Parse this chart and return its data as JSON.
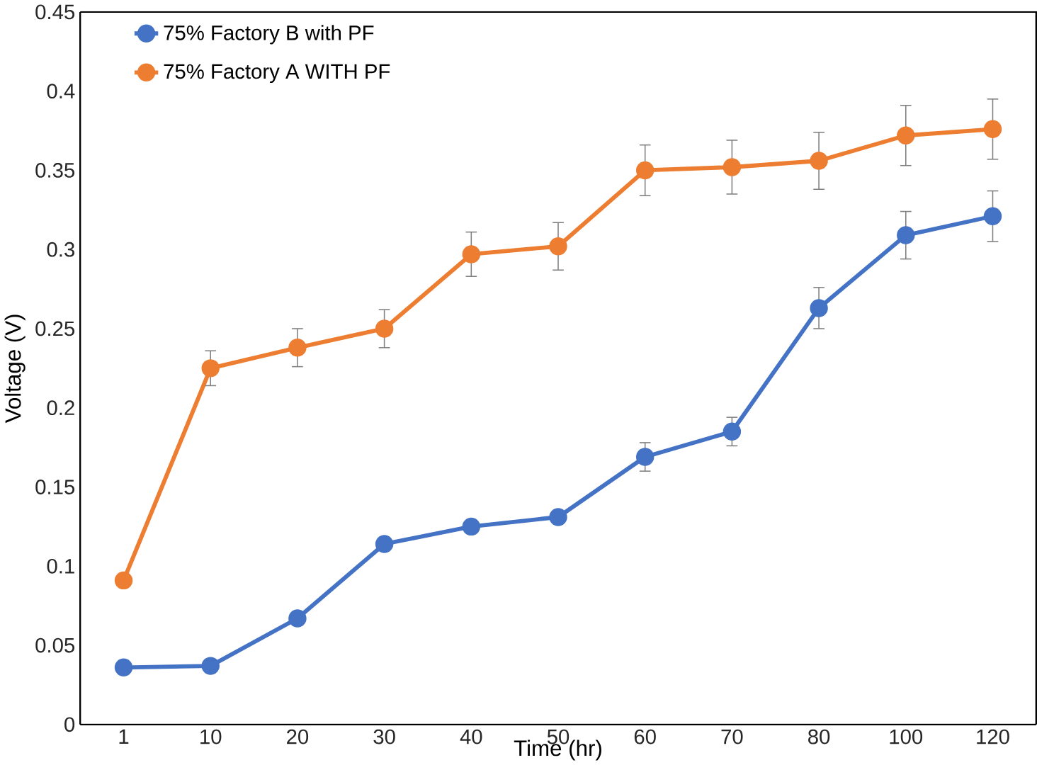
{
  "chart_data": {
    "type": "line",
    "xlabel": "Time (hr)",
    "ylabel": "Voltage (V)",
    "categories": [
      "1",
      "10",
      "20",
      "30",
      "40",
      "50",
      "60",
      "70",
      "80",
      "100",
      "120"
    ],
    "series": [
      {
        "name": "75% Factory B with PF",
        "color": "#4472c4",
        "values": [
          0.036,
          0.037,
          0.067,
          0.114,
          0.125,
          0.131,
          0.169,
          0.185,
          0.263,
          0.309,
          0.321
        ],
        "errors": [
          null,
          null,
          null,
          null,
          null,
          null,
          0.009,
          0.009,
          0.013,
          0.015,
          0.016
        ]
      },
      {
        "name": "75% Factory A WITH PF",
        "color": "#ed7d31",
        "values": [
          0.091,
          0.225,
          0.238,
          0.25,
          0.297,
          0.302,
          0.35,
          0.352,
          0.356,
          0.372,
          0.376
        ],
        "errors": [
          null,
          0.011,
          0.012,
          0.012,
          0.014,
          0.015,
          0.016,
          0.017,
          0.018,
          0.019,
          0.019
        ]
      }
    ],
    "ylim": [
      0,
      0.45
    ],
    "yticks": [
      0,
      0.05,
      0.1,
      0.15,
      0.2,
      0.25,
      0.3,
      0.35,
      0.4,
      0.45
    ],
    "grid": false,
    "legend": "top left",
    "marker": "circle",
    "line_style": "solid"
  }
}
